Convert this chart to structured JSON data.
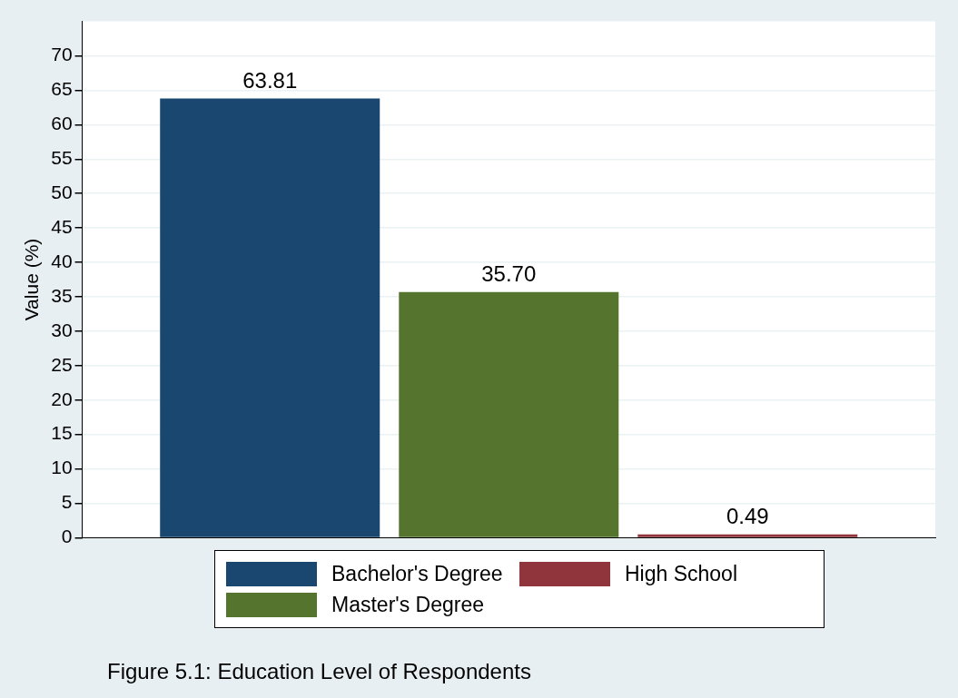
{
  "chart_data": {
    "type": "bar",
    "ylabel": "Value (%)",
    "categories": [
      null
    ],
    "series": [
      {
        "name": "Bachelor's Degree",
        "color": "#1a476f",
        "values": [
          63.81
        ],
        "value_labels": [
          "63.81"
        ]
      },
      {
        "name": "Master's Degree",
        "color": "#55752f",
        "values": [
          35.7
        ],
        "value_labels": [
          "35.70"
        ]
      },
      {
        "name": "High School",
        "color": "#90353b",
        "values": [
          0.49
        ],
        "value_labels": [
          "0.49"
        ]
      }
    ],
    "ylim": [
      0,
      75
    ],
    "yticks": [
      0,
      5,
      10,
      15,
      20,
      25,
      30,
      35,
      40,
      45,
      50,
      55,
      60,
      65,
      70
    ],
    "grid": "y",
    "legend": "bottom",
    "annotations": [
      "Figure 5.1: Education Level of Respondents"
    ]
  }
}
